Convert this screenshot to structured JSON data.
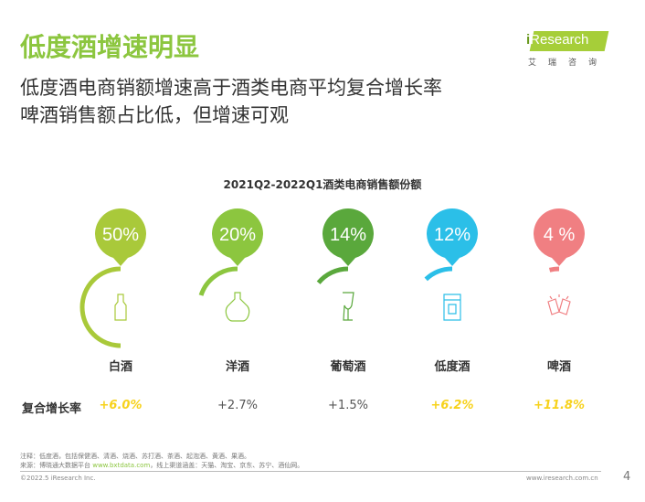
{
  "header": {
    "title": "低度酒增速明显",
    "subtitle_lines": [
      "低度酒电商销额增速高于酒类电商平均复合增长率",
      "啤酒销售额占比低，但增速可观"
    ]
  },
  "logo": {
    "brand": "iResearch",
    "cn": "艾瑞咨询"
  },
  "chart_data": {
    "type": "radial-progress",
    "title": "2021Q2-2022Q1酒类电商销售额份额",
    "categories": [
      "白酒",
      "洋酒",
      "葡萄酒",
      "低度酒",
      "啤酒"
    ],
    "share_labels": [
      "50%",
      "20%",
      "14%",
      "12%",
      "4 %"
    ],
    "values": [
      50,
      20,
      14,
      12,
      4
    ],
    "colors": [
      "#a9c93a",
      "#8cc63f",
      "#5aa83c",
      "#2bbfe8",
      "#f07f82"
    ],
    "icons": [
      "baijiu-bottle-icon",
      "liquor-bottle-icon",
      "wine-glass-icon",
      "can-icon",
      "beer-mugs-icon"
    ],
    "growth_label": "复合增长率",
    "growth": [
      "+6.0%",
      "+2.7%",
      "+1.5%",
      "+6.2%",
      "+11.8%"
    ],
    "growth_highlight": [
      true,
      false,
      false,
      true,
      true
    ]
  },
  "notes": {
    "note": "注释：低度酒，包括保健酒、清酒、烧酒、苏打酒、茶酒、起泡酒、黄酒、果酒。",
    "source_prefix": "来源：博晓通大数据平台 ",
    "source_link": "www.bxtdata.com",
    "source_suffix": "，线上渠道涵盖：天猫、淘宝、京东、苏宁、酒仙网。"
  },
  "footer": {
    "copyright": "©2022.5 iResearch Inc.",
    "url": "www.iresearch.com.cn",
    "page": "4"
  }
}
